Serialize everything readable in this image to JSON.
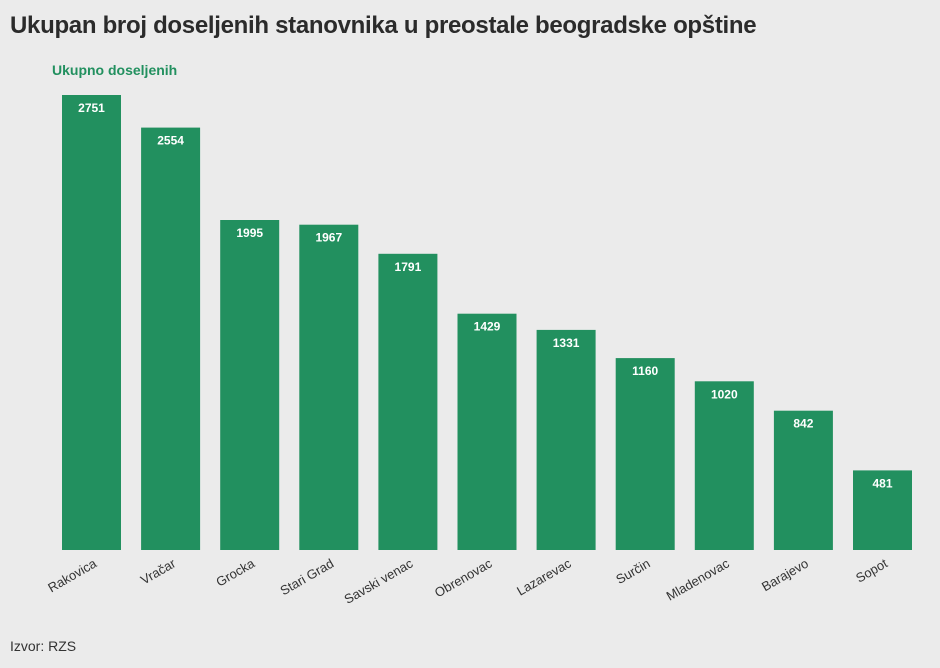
{
  "chart_data": {
    "type": "bar",
    "title": "Ukupan broj doseljenih stanovnika u preostale beogradske opštine",
    "categories": [
      "Rakovica",
      "Vračar",
      "Grocka",
      "Stari Grad",
      "Savski venac",
      "Obrenovac",
      "Lazarevac",
      "Surčin",
      "Mladenovac",
      "Barajevo",
      "Sopot"
    ],
    "series": [
      {
        "name": "Ukupno doseljenih",
        "values": [
          2751,
          2554,
          1995,
          1967,
          1791,
          1429,
          1331,
          1160,
          1020,
          842,
          481
        ]
      }
    ],
    "ylim": [
      0,
      2751
    ],
    "grid": false,
    "legend": "top-left",
    "source": "Izvor: RZS",
    "colors": {
      "bar": "#22905f",
      "bar_label": "#ffffff",
      "background": "#ebebeb"
    }
  }
}
